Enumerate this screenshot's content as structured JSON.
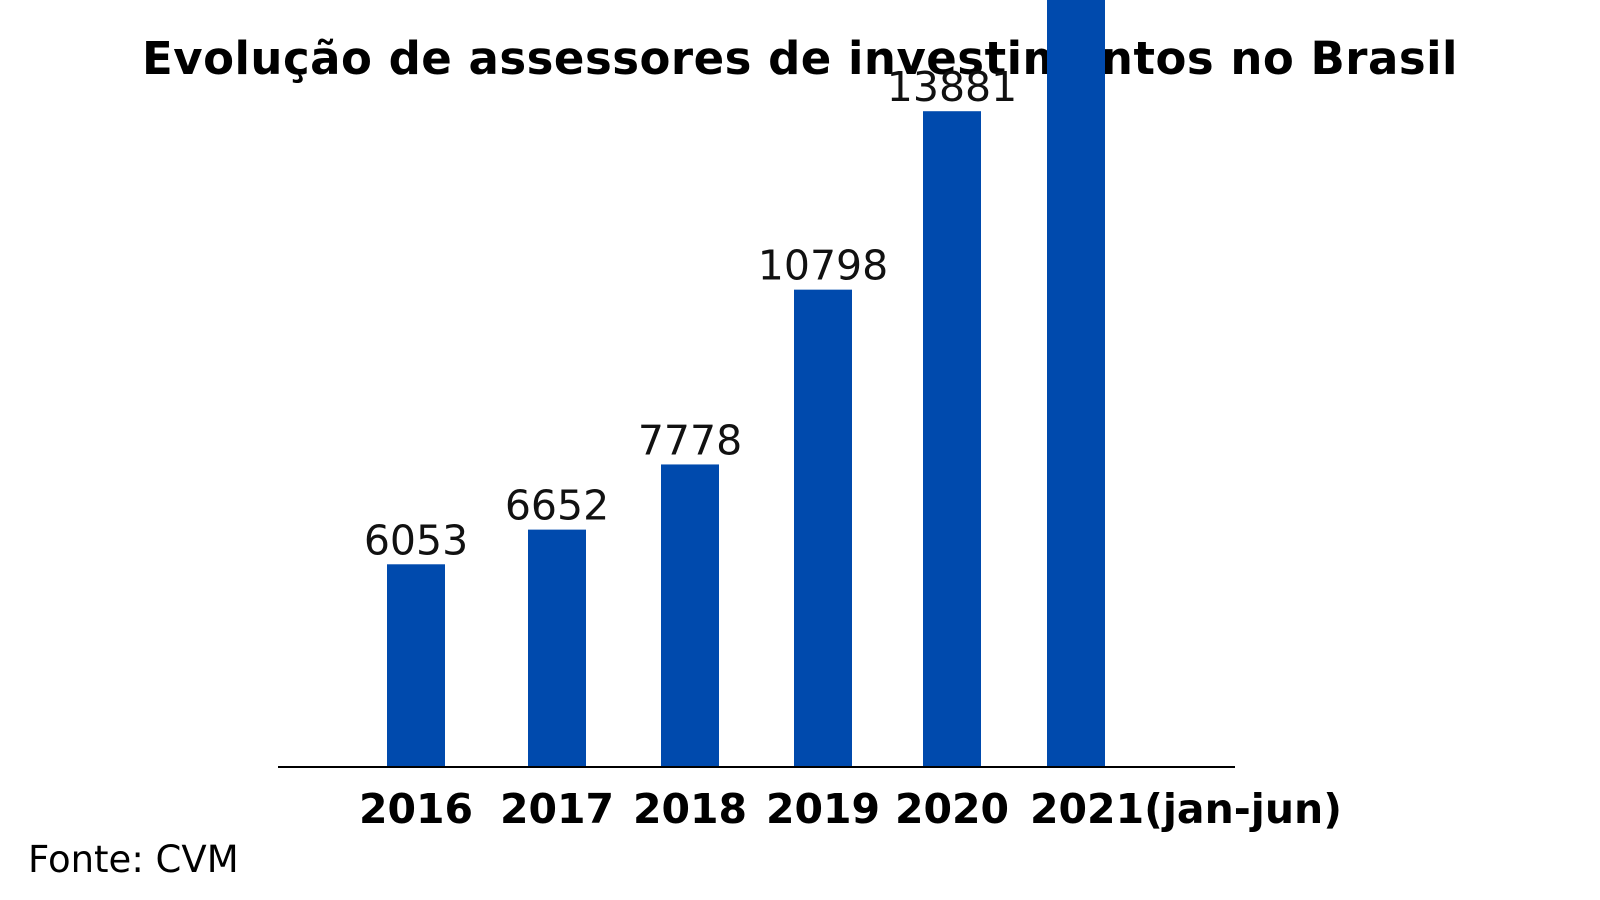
{
  "chart_data": {
    "type": "bar",
    "title": "Evolução de assessores de investimentos no Brasil",
    "categories": [
      "2016",
      "2017",
      "2018",
      "2019",
      "2020",
      "2021(jan-jun)"
    ],
    "values": [
      6053,
      6652,
      7778,
      10798,
      13881,
      15970
    ],
    "xlabel": "",
    "ylabel": "",
    "ylim": [
      3000,
      16500
    ],
    "grid": false,
    "legend": "none",
    "data_labels": true,
    "bar_color": "#004AAD",
    "axis_color": "#000000"
  },
  "source": "Fonte: CVM"
}
